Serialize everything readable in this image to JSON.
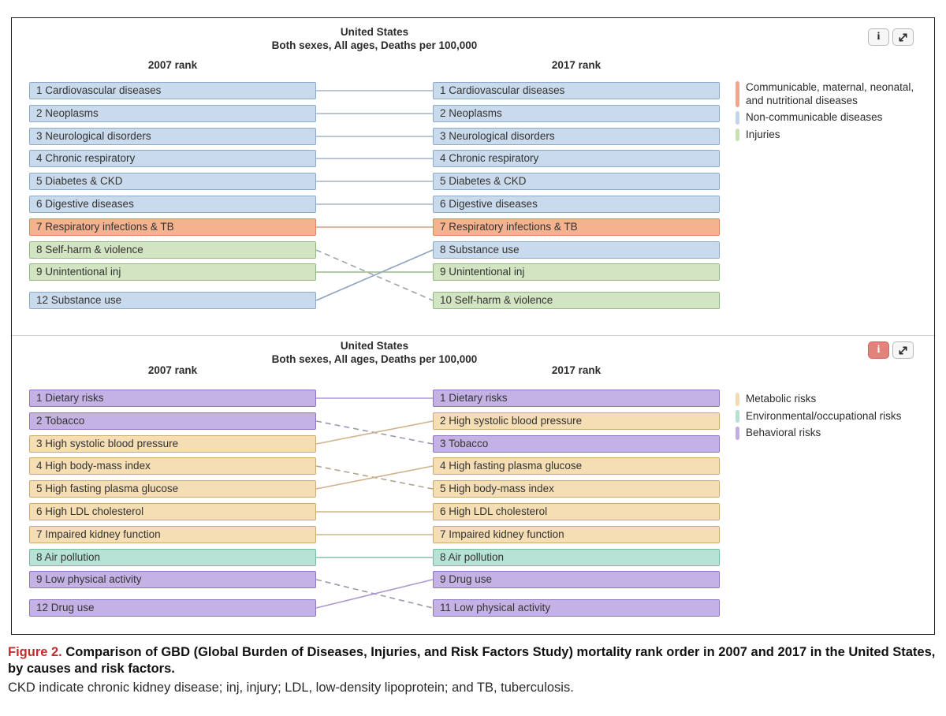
{
  "figure": {
    "caption_label": "Figure 2.",
    "caption_title": " Comparison of GBD (Global Burden of Diseases, Injuries, and Risk Factors Study) mortality rank order in 2007 and 2017 in the United States, by causes and risk factors.",
    "caption_note": "CKD indicate chronic kidney disease; inj, injury; LDL, low-density lipoprotein; and TB, tuberculosis."
  },
  "icons": {
    "info": "i",
    "expand": "diagonal-resize-arrow"
  },
  "colors": {
    "figure_label_red": "#be2f2e",
    "active_info_button": "#e2837b",
    "panel_border": "#1c1c1c"
  },
  "categories": {
    "cmnn": {
      "label": "Communicable, maternal, neonatal, and nutritional diseases",
      "fill": "#f5b28f",
      "border": "#d8875f"
    },
    "ncd": {
      "label": "Non-communicable diseases",
      "fill": "#c9daec",
      "border": "#8ca9cb"
    },
    "inj": {
      "label": "Injuries",
      "fill": "#d2e4c1",
      "border": "#8fba7b"
    },
    "metabolic": {
      "label": "Metabolic risks",
      "fill": "#f5ddb4",
      "border": "#cba970"
    },
    "environmental": {
      "label": "Environmental/occupational risks",
      "fill": "#b6e3d5",
      "border": "#70bda7"
    },
    "behavioral": {
      "label": "Behavioral risks",
      "fill": "#c5b2e5",
      "border": "#8f75c2"
    }
  },
  "chart_data": [
    {
      "type": "table",
      "subtype": "rank-comparison",
      "title": "United States",
      "subtitle": "Both sexes, All ages, Deaths per 100,000",
      "left_header": "2007 rank",
      "right_header": "2017 rank",
      "info_button_active": false,
      "legend": [
        {
          "label": "Communicable, maternal, neonatal, and nutritional diseases",
          "color": "#f0a68c"
        },
        {
          "label": "Non-communicable diseases",
          "color": "#c3d5ea"
        },
        {
          "label": "Injuries",
          "color": "#c8e0b4"
        }
      ],
      "left": [
        {
          "rank": 1,
          "label": "Cardiovascular diseases",
          "category": "ncd"
        },
        {
          "rank": 2,
          "label": "Neoplasms",
          "category": "ncd"
        },
        {
          "rank": 3,
          "label": "Neurological disorders",
          "category": "ncd"
        },
        {
          "rank": 4,
          "label": "Chronic respiratory",
          "category": "ncd"
        },
        {
          "rank": 5,
          "label": "Diabetes & CKD",
          "category": "ncd"
        },
        {
          "rank": 6,
          "label": "Digestive diseases",
          "category": "ncd"
        },
        {
          "rank": 7,
          "label": "Respiratory infections & TB",
          "category": "cmnn"
        },
        {
          "rank": 8,
          "label": "Self-harm & violence",
          "category": "inj"
        },
        {
          "rank": 9,
          "label": "Unintentional inj",
          "category": "inj"
        },
        {
          "rank": 12,
          "label": "Substance use",
          "category": "ncd"
        }
      ],
      "right": [
        {
          "rank": 1,
          "label": "Cardiovascular diseases",
          "category": "ncd"
        },
        {
          "rank": 2,
          "label": "Neoplasms",
          "category": "ncd"
        },
        {
          "rank": 3,
          "label": "Neurological disorders",
          "category": "ncd"
        },
        {
          "rank": 4,
          "label": "Chronic respiratory",
          "category": "ncd"
        },
        {
          "rank": 5,
          "label": "Diabetes & CKD",
          "category": "ncd"
        },
        {
          "rank": 6,
          "label": "Digestive diseases",
          "category": "ncd"
        },
        {
          "rank": 7,
          "label": "Respiratory infections & TB",
          "category": "cmnn"
        },
        {
          "rank": 8,
          "label": "Substance use",
          "category": "ncd"
        },
        {
          "rank": 9,
          "label": "Unintentional inj",
          "category": "inj"
        },
        {
          "rank": 10,
          "label": "Self-harm & violence",
          "category": "inj"
        }
      ],
      "links": [
        {
          "from": 0,
          "to": 0,
          "style": "solid",
          "color": "#a5b2c8"
        },
        {
          "from": 1,
          "to": 1,
          "style": "solid",
          "color": "#a5b2c8"
        },
        {
          "from": 2,
          "to": 2,
          "style": "solid",
          "color": "#a5b2c8"
        },
        {
          "from": 3,
          "to": 3,
          "style": "solid",
          "color": "#a5b2c8"
        },
        {
          "from": 4,
          "to": 4,
          "style": "solid",
          "color": "#a5b2c8"
        },
        {
          "from": 5,
          "to": 5,
          "style": "solid",
          "color": "#a5b2c8"
        },
        {
          "from": 6,
          "to": 6,
          "style": "solid",
          "color": "#d79c83"
        },
        {
          "from": 7,
          "to": 9,
          "style": "dashed",
          "color": "#9ba3a9"
        },
        {
          "from": 8,
          "to": 8,
          "style": "solid",
          "color": "#9cba8f"
        },
        {
          "from": 9,
          "to": 7,
          "style": "solid",
          "color": "#8ea3bd"
        }
      ]
    },
    {
      "type": "table",
      "subtype": "rank-comparison",
      "title": "United States",
      "subtitle": "Both sexes, All ages, Deaths per 100,000",
      "left_header": "2007 rank",
      "right_header": "2017 rank",
      "info_button_active": true,
      "legend": [
        {
          "label": "Metabolic risks",
          "color": "#f1dbb2"
        },
        {
          "label": "Environmental/occupational risks",
          "color": "#b5e0d2"
        },
        {
          "label": "Behavioral risks",
          "color": "#c2aee3"
        }
      ],
      "left": [
        {
          "rank": 1,
          "label": "Dietary risks",
          "category": "behavioral"
        },
        {
          "rank": 2,
          "label": "Tobacco",
          "category": "behavioral"
        },
        {
          "rank": 3,
          "label": "High systolic blood pressure",
          "category": "metabolic"
        },
        {
          "rank": 4,
          "label": "High body-mass index",
          "category": "metabolic"
        },
        {
          "rank": 5,
          "label": "High fasting plasma glucose",
          "category": "metabolic"
        },
        {
          "rank": 6,
          "label": "High LDL cholesterol",
          "category": "metabolic"
        },
        {
          "rank": 7,
          "label": "Impaired kidney function",
          "category": "metabolic"
        },
        {
          "rank": 8,
          "label": "Air pollution",
          "category": "environmental"
        },
        {
          "rank": 9,
          "label": "Low physical activity",
          "category": "behavioral"
        },
        {
          "rank": 12,
          "label": "Drug use",
          "category": "behavioral"
        }
      ],
      "right": [
        {
          "rank": 1,
          "label": "Dietary risks",
          "category": "behavioral"
        },
        {
          "rank": 2,
          "label": "High systolic blood pressure",
          "category": "metabolic"
        },
        {
          "rank": 3,
          "label": "Tobacco",
          "category": "behavioral"
        },
        {
          "rank": 4,
          "label": "High fasting plasma glucose",
          "category": "metabolic"
        },
        {
          "rank": 5,
          "label": "High body-mass index",
          "category": "metabolic"
        },
        {
          "rank": 6,
          "label": "High LDL cholesterol",
          "category": "metabolic"
        },
        {
          "rank": 7,
          "label": "Impaired kidney function",
          "category": "metabolic"
        },
        {
          "rank": 8,
          "label": "Air pollution",
          "category": "environmental"
        },
        {
          "rank": 9,
          "label": "Drug use",
          "category": "behavioral"
        },
        {
          "rank": 11,
          "label": "Low physical activity",
          "category": "behavioral"
        }
      ],
      "links": [
        {
          "from": 0,
          "to": 0,
          "style": "solid",
          "color": "#ab97d2"
        },
        {
          "from": 1,
          "to": 2,
          "style": "dashed",
          "color": "#9e96af"
        },
        {
          "from": 2,
          "to": 1,
          "style": "solid",
          "color": "#cdb28a"
        },
        {
          "from": 3,
          "to": 4,
          "style": "dashed",
          "color": "#b3a58f"
        },
        {
          "from": 4,
          "to": 3,
          "style": "solid",
          "color": "#cdb28a"
        },
        {
          "from": 5,
          "to": 5,
          "style": "solid",
          "color": "#cdb28a"
        },
        {
          "from": 6,
          "to": 6,
          "style": "solid",
          "color": "#cdb28a"
        },
        {
          "from": 7,
          "to": 7,
          "style": "solid",
          "color": "#86c2af"
        },
        {
          "from": 8,
          "to": 9,
          "style": "dashed",
          "color": "#9e96af"
        },
        {
          "from": 9,
          "to": 8,
          "style": "solid",
          "color": "#ab97d2"
        }
      ]
    }
  ]
}
